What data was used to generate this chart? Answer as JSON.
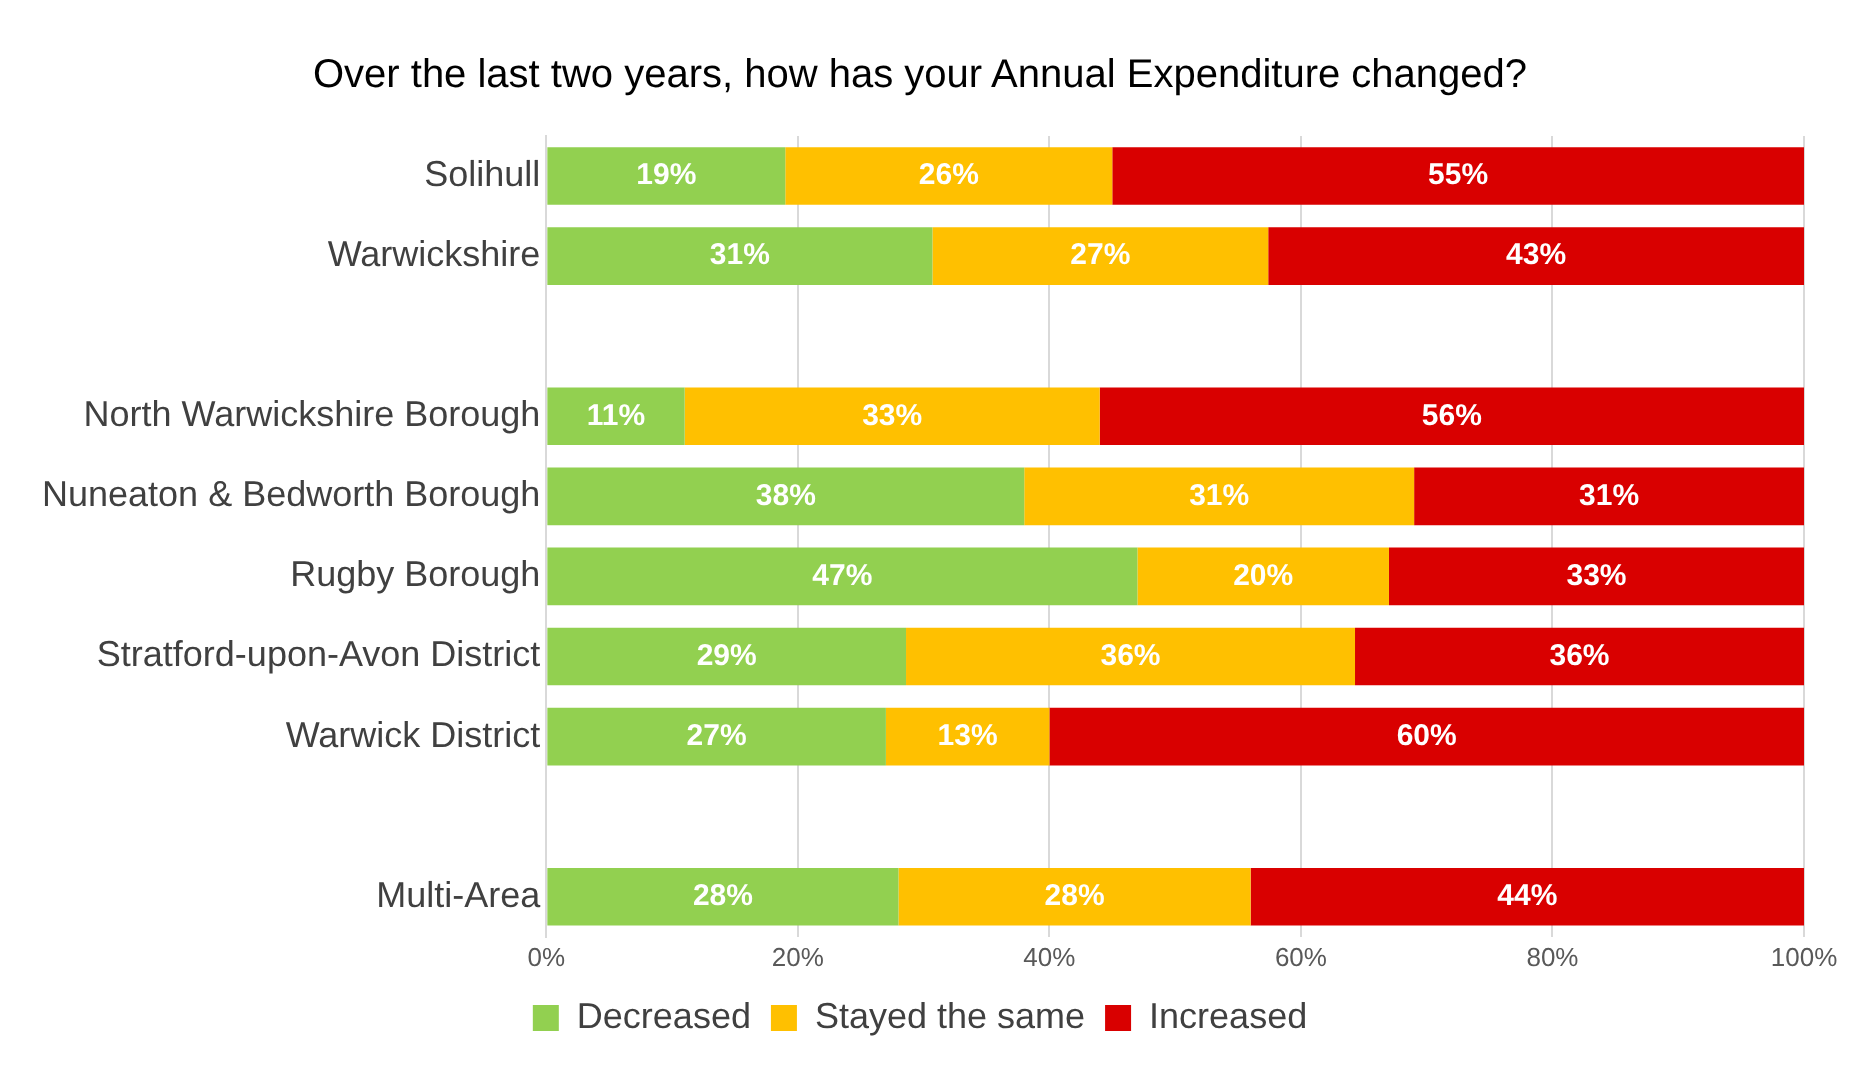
{
  "chart_data": {
    "type": "bar",
    "orientation": "horizontal",
    "stacked": true,
    "title": "Over the last two years, how has your Annual Expenditure changed?",
    "categories": [
      "Solihull",
      "Warwickshire",
      null,
      "North Warwickshire Borough",
      "Nuneaton & Bedworth Borough",
      "Rugby Borough",
      "Stratford-upon-Avon District",
      "Warwick District",
      null,
      "Multi-Area"
    ],
    "series": [
      {
        "name": "Decreased",
        "color": "#92d050",
        "values": [
          19,
          30.7,
          null,
          11,
          38,
          47,
          28.6,
          27,
          null,
          28
        ],
        "value_labels": [
          "19%",
          "31%",
          null,
          "11%",
          "38%",
          "47%",
          "29%",
          "27%",
          null,
          "28%"
        ]
      },
      {
        "name": "Stayed the same",
        "color": "#ffc000",
        "values": [
          26,
          26.7,
          null,
          33,
          31,
          20,
          35.7,
          13,
          null,
          28
        ],
        "value_labels": [
          "26%",
          "27%",
          null,
          "33%",
          "31%",
          "20%",
          "36%",
          "13%",
          null,
          "28%"
        ]
      },
      {
        "name": "Increased",
        "color": "#d90000",
        "values": [
          55,
          42.6,
          null,
          56,
          31,
          33,
          35.7,
          60,
          null,
          44
        ],
        "value_labels": [
          "55%",
          "43%",
          null,
          "56%",
          "31%",
          "33%",
          "36%",
          "60%",
          null,
          "44%"
        ]
      }
    ],
    "xlim": [
      0,
      100
    ],
    "xticks": [
      {
        "value": 0,
        "label": "0%"
      },
      {
        "value": 20,
        "label": "20%"
      },
      {
        "value": 40,
        "label": "40%"
      },
      {
        "value": 60,
        "label": "60%"
      },
      {
        "value": 80,
        "label": "80%"
      },
      {
        "value": 100,
        "label": "100%"
      }
    ],
    "grid": "x",
    "legend": "bottom"
  }
}
